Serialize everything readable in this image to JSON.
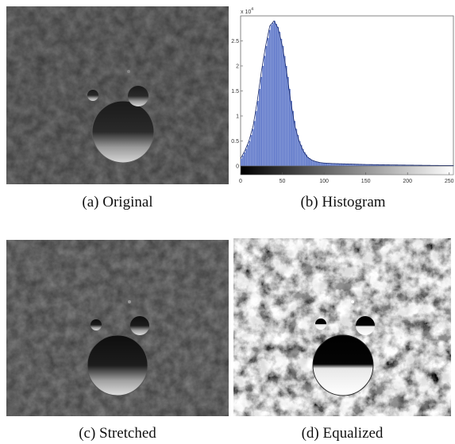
{
  "figure": {
    "panels": [
      {
        "id": "a",
        "caption": "(a) Original"
      },
      {
        "id": "b",
        "caption": "(b) Histogram"
      },
      {
        "id": "c",
        "caption": "(c) Stretched"
      },
      {
        "id": "d",
        "caption": "(d) Equalized"
      }
    ]
  },
  "chart_data": {
    "type": "bar",
    "title": "",
    "xlabel": "",
    "ylabel": "",
    "y_exponent_label": "x 10",
    "y_exponent_power": "4",
    "xlim": [
      0,
      255
    ],
    "ylim": [
      0,
      3
    ],
    "x_ticks": [
      0,
      50,
      100,
      150,
      200,
      250
    ],
    "x_tick_labels": [
      "0",
      "50",
      "100",
      "150",
      "200",
      "250"
    ],
    "y_ticks": [
      0,
      0.5,
      1,
      1.5,
      2,
      2.5
    ],
    "y_tick_labels": [
      "0",
      "0.5",
      "1",
      "1.5",
      "2",
      "2.5"
    ],
    "x": [
      0,
      5,
      10,
      15,
      20,
      25,
      30,
      35,
      40,
      45,
      50,
      55,
      60,
      65,
      70,
      75,
      80,
      85,
      90,
      95,
      100,
      110,
      120,
      130,
      140,
      150,
      160,
      170,
      180,
      190,
      200,
      210,
      220,
      230,
      240,
      250,
      255
    ],
    "values": [
      0.15,
      0.3,
      0.5,
      0.8,
      1.3,
      1.9,
      2.4,
      2.8,
      2.9,
      2.75,
      2.4,
      1.9,
      1.3,
      0.8,
      0.5,
      0.3,
      0.18,
      0.12,
      0.09,
      0.07,
      0.06,
      0.05,
      0.045,
      0.04,
      0.035,
      0.03,
      0.028,
      0.025,
      0.022,
      0.02,
      0.018,
      0.016,
      0.014,
      0.012,
      0.01,
      0.01,
      0.01
    ],
    "bar_color": "#5a74c8",
    "colorbar": "grayscale"
  }
}
